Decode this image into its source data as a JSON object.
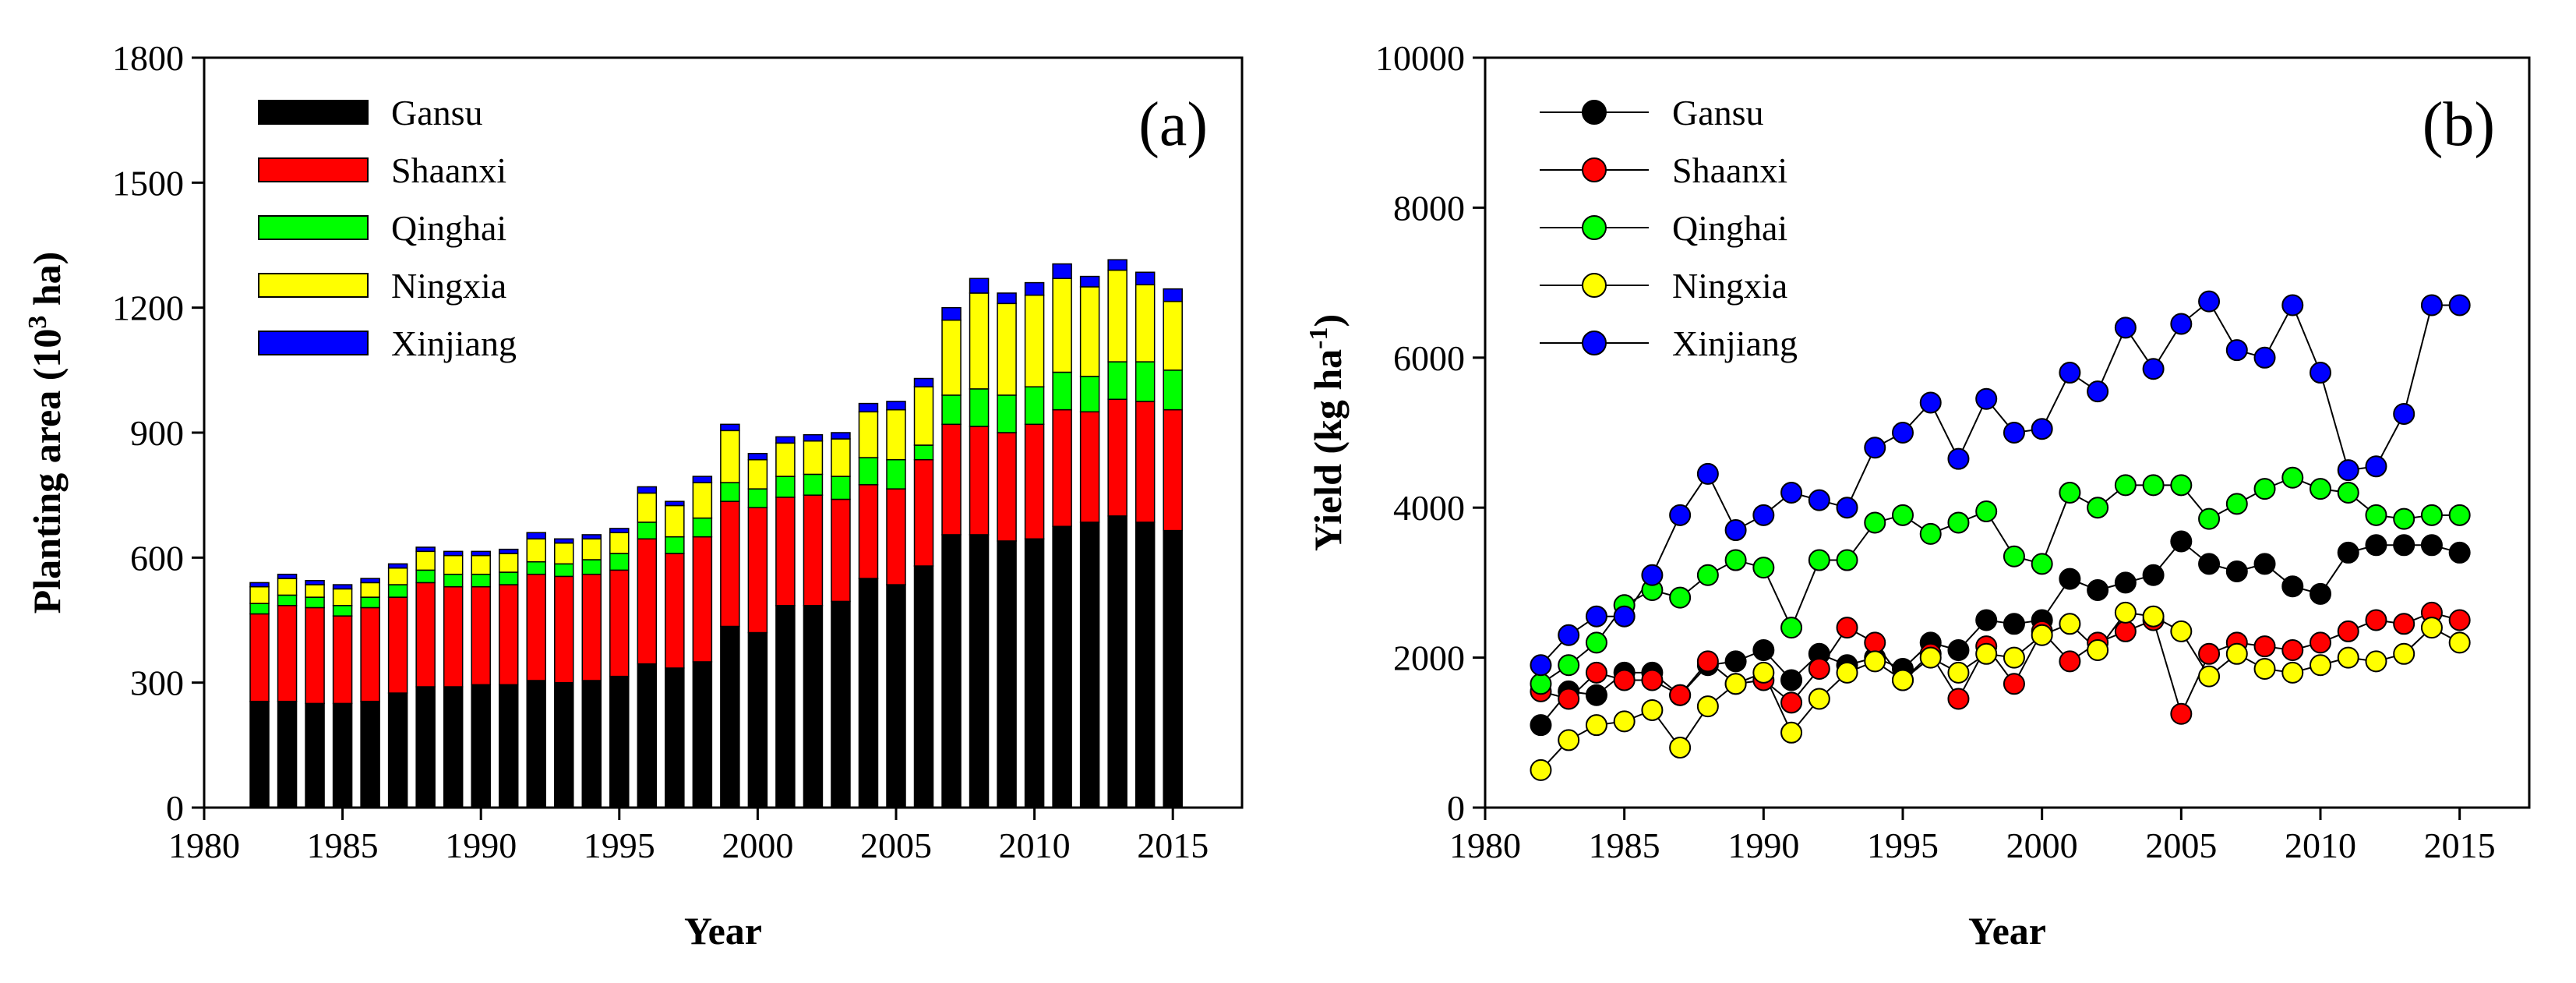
{
  "chart_data": [
    {
      "type": "bar",
      "stacked": true,
      "panel_label": "(a)",
      "xlabel": "Year",
      "ylabel": "Planting area (10",
      "ylabel_sup": "3",
      "ylabel_tail": " ha)",
      "xlim": [
        1980,
        2017.5
      ],
      "ylim": [
        0,
        1800
      ],
      "xticks": [
        1980,
        1985,
        1990,
        1995,
        2000,
        2005,
        2010,
        2015
      ],
      "yticks": [
        0,
        300,
        600,
        900,
        1200,
        1500,
        1800
      ],
      "legend_position": "top-left",
      "categories": [
        1982,
        1983,
        1984,
        1985,
        1986,
        1987,
        1988,
        1989,
        1990,
        1991,
        1992,
        1993,
        1994,
        1995,
        1996,
        1997,
        1998,
        1999,
        2000,
        2001,
        2002,
        2003,
        2004,
        2005,
        2006,
        2007,
        2008,
        2009,
        2010,
        2011,
        2012,
        2013,
        2014,
        2015
      ],
      "series": [
        {
          "name": "Gansu",
          "color": "#000000",
          "values": [
            255,
            255,
            250,
            250,
            255,
            275,
            290,
            290,
            295,
            295,
            305,
            300,
            305,
            315,
            345,
            335,
            350,
            435,
            420,
            485,
            485,
            495,
            550,
            535,
            580,
            655,
            655,
            640,
            645,
            675,
            685,
            700,
            685,
            665
          ]
        },
        {
          "name": "Shaanxi",
          "color": "#ff0000",
          "values": [
            210,
            230,
            230,
            210,
            225,
            230,
            250,
            240,
            235,
            240,
            255,
            255,
            255,
            255,
            300,
            275,
            300,
            300,
            300,
            260,
            265,
            245,
            225,
            230,
            255,
            265,
            260,
            260,
            275,
            280,
            265,
            280,
            290,
            290
          ]
        },
        {
          "name": "Qinghai",
          "color": "#00ff00",
          "values": [
            25,
            25,
            25,
            25,
            25,
            30,
            30,
            30,
            30,
            30,
            30,
            30,
            35,
            40,
            40,
            40,
            45,
            45,
            45,
            50,
            50,
            55,
            65,
            70,
            35,
            70,
            90,
            90,
            90,
            90,
            85,
            90,
            95,
            95
          ]
        },
        {
          "name": "Ningxia",
          "color": "#ffff00",
          "values": [
            40,
            40,
            30,
            40,
            35,
            40,
            45,
            45,
            45,
            45,
            55,
            50,
            50,
            50,
            70,
            75,
            85,
            125,
            70,
            80,
            80,
            90,
            110,
            120,
            140,
            180,
            230,
            220,
            220,
            225,
            215,
            220,
            185,
            165
          ]
        },
        {
          "name": "Xinjiang",
          "color": "#0000ff",
          "values": [
            10,
            10,
            10,
            10,
            10,
            10,
            10,
            10,
            10,
            10,
            15,
            10,
            10,
            10,
            15,
            10,
            15,
            15,
            15,
            15,
            15,
            15,
            20,
            20,
            20,
            30,
            35,
            25,
            30,
            35,
            25,
            25,
            30,
            30
          ]
        }
      ]
    },
    {
      "type": "line",
      "panel_label": "(b)",
      "xlabel": "Year",
      "ylabel": "Yield (kg ha",
      "ylabel_sup": "-1",
      "ylabel_tail": ")",
      "xlim": [
        1980,
        2017.5
      ],
      "ylim": [
        0,
        10000
      ],
      "xticks": [
        1980,
        1985,
        1990,
        1995,
        2000,
        2005,
        2010,
        2015
      ],
      "yticks": [
        0,
        2000,
        4000,
        6000,
        8000,
        10000
      ],
      "legend_position": "top-left",
      "x": [
        1982,
        1983,
        1984,
        1985,
        1986,
        1987,
        1988,
        1989,
        1990,
        1991,
        1992,
        1993,
        1994,
        1995,
        1996,
        1997,
        1998,
        1999,
        2000,
        2001,
        2002,
        2003,
        2004,
        2005,
        2006,
        2007,
        2008,
        2009,
        2010,
        2011,
        2012,
        2013,
        2014,
        2015
      ],
      "series": [
        {
          "name": "Gansu",
          "color": "#000000",
          "values": [
            1100,
            1550,
            1500,
            1800,
            1800,
            1500,
            1900,
            1950,
            2100,
            1700,
            2050,
            1900,
            2000,
            1850,
            2200,
            2100,
            2500,
            2450,
            2500,
            3050,
            2900,
            3000,
            3100,
            3550,
            3250,
            3150,
            3250,
            2950,
            2850,
            3400,
            3500,
            3500,
            3500,
            3400
          ]
        },
        {
          "name": "Shaanxi",
          "color": "#ff0000",
          "values": [
            1550,
            1450,
            1800,
            1700,
            1700,
            1500,
            1950,
            1650,
            1700,
            1400,
            1850,
            2400,
            2200,
            1700,
            2050,
            1450,
            2150,
            1650,
            2350,
            1950,
            2200,
            2350,
            2500,
            1250,
            2050,
            2200,
            2150,
            2100,
            2200,
            2350,
            2500,
            2450,
            2600,
            2500
          ]
        },
        {
          "name": "Qinghai",
          "color": "#00ff00",
          "values": [
            1650,
            1900,
            2200,
            2700,
            2900,
            2800,
            3100,
            3300,
            3200,
            2400,
            3300,
            3300,
            3800,
            3900,
            3650,
            3800,
            3950,
            3350,
            3250,
            4200,
            4000,
            4300,
            4300,
            4300,
            3850,
            4050,
            4250,
            4400,
            4250,
            4200,
            3900,
            3850,
            3900,
            3900
          ]
        },
        {
          "name": "Ningxia",
          "color": "#ffff00",
          "values": [
            500,
            900,
            1100,
            1150,
            1300,
            800,
            1350,
            1650,
            1800,
            1000,
            1450,
            1800,
            1950,
            1700,
            2000,
            1800,
            2050,
            2000,
            2300,
            2450,
            2100,
            2600,
            2550,
            2350,
            1750,
            2050,
            1850,
            1800,
            1900,
            2000,
            1950,
            2050,
            2400,
            2200
          ]
        },
        {
          "name": "Xinjiang",
          "color": "#0000ff",
          "values": [
            1900,
            2300,
            2550,
            2550,
            3100,
            3900,
            4450,
            3700,
            3900,
            4200,
            4100,
            4000,
            4800,
            5000,
            5400,
            4650,
            5450,
            5000,
            5050,
            5800,
            5550,
            6400,
            5850,
            6450,
            6750,
            6100,
            6000,
            6700,
            5800,
            4500,
            4550,
            5250,
            6700,
            6700
          ]
        }
      ]
    }
  ]
}
